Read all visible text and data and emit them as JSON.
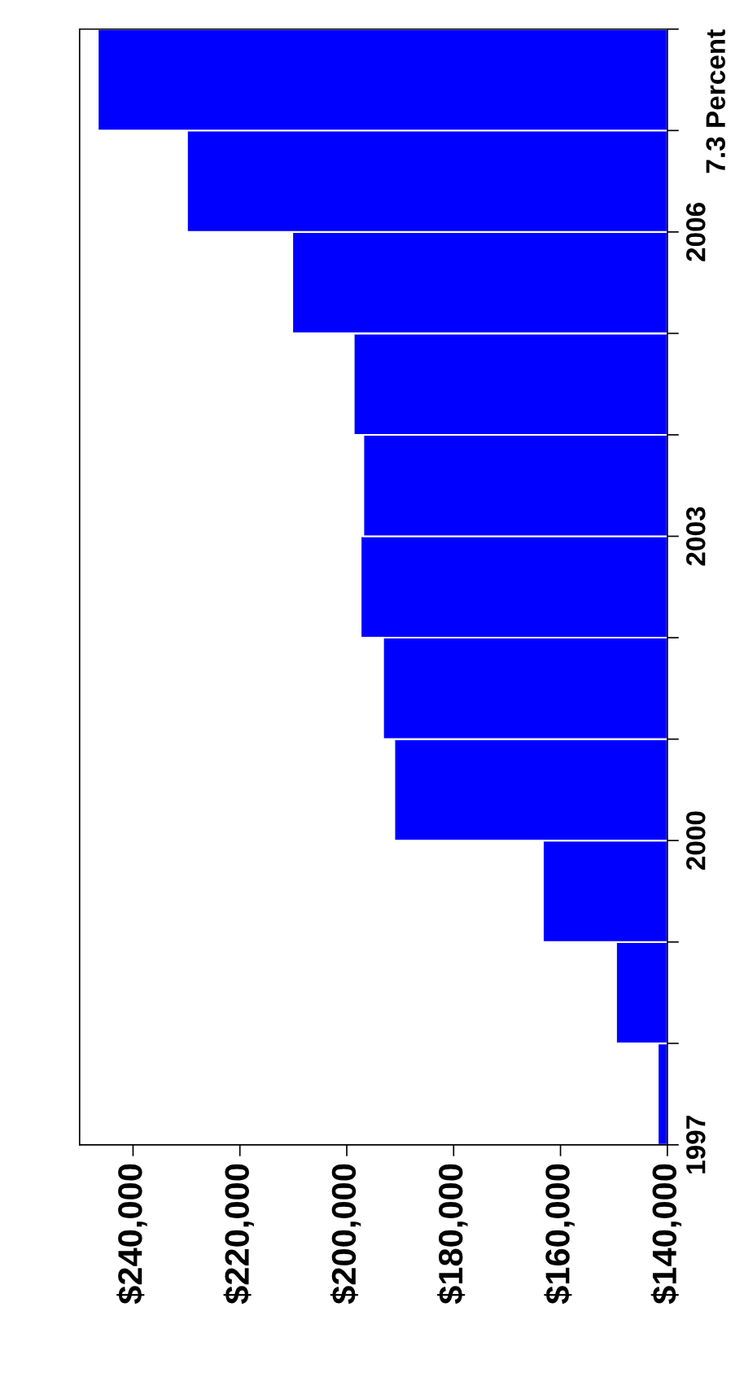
{
  "chart_data": {
    "type": "histogram",
    "title": "7.3 Percent",
    "orientation": "horizontal",
    "color": "#0000ff",
    "bins": [
      1997,
      1998,
      1999,
      2000,
      2001,
      2002,
      2003,
      2004,
      2005,
      2006,
      2007,
      2008
    ],
    "values": [
      141800,
      149600,
      163300,
      191100,
      193200,
      197400,
      196900,
      198700,
      210200,
      229900,
      246600
    ],
    "xlim": [
      250000,
      140000
    ],
    "xticks": [
      {
        "value": 240000,
        "label": "$240,000"
      },
      {
        "value": 220000,
        "label": "$220,000"
      },
      {
        "value": 200000,
        "label": "$200,000"
      },
      {
        "value": 180000,
        "label": "$180,000"
      },
      {
        "value": 160000,
        "label": "$160,000"
      },
      {
        "value": 140000,
        "label": "$140,000"
      }
    ],
    "ylim": [
      1997,
      2008
    ],
    "yticks": [
      1997,
      {
        "value": 1998,
        "label": null
      },
      {
        "value": 1999,
        "label": null
      },
      2000,
      {
        "value": 2001,
        "label": null
      },
      {
        "value": 2002,
        "label": null
      },
      2003,
      {
        "value": 2004,
        "label": null
      },
      {
        "value": 2005,
        "label": null
      },
      2006,
      {
        "value": 2007,
        "label": null
      },
      {
        "value": 2008,
        "label": null
      }
    ],
    "grid": false,
    "legend": false
  }
}
